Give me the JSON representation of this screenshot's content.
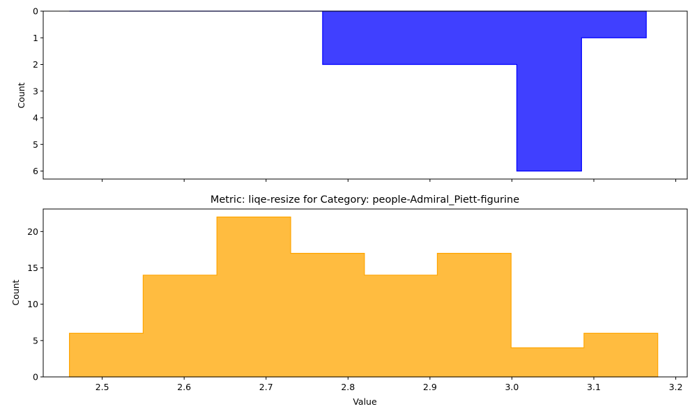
{
  "chart_data": [
    {
      "type": "histogram",
      "orientation": "up",
      "title": "",
      "xlabel": "",
      "ylabel": "Count",
      "xlim": [
        2.428,
        3.214
      ],
      "ylim": [
        0,
        6.3
      ],
      "yticks": [
        "0",
        "1",
        "2",
        "3",
        "4",
        "5",
        "6"
      ],
      "ytick_values": [
        0,
        1,
        2,
        3,
        4,
        5,
        6
      ],
      "xticks_values": [
        2.5,
        2.6,
        2.7,
        2.8,
        2.9,
        3.0,
        3.1,
        3.2
      ],
      "xticks_labels_shown": false,
      "color": "#0000ff",
      "fill_alpha": 0.75,
      "grid": false,
      "bin_edges": [
        2.46,
        2.539,
        2.618,
        2.69,
        2.769,
        2.848,
        2.927,
        3.006,
        3.085,
        3.164
      ],
      "counts": [
        0,
        0,
        0,
        0,
        2,
        2,
        2,
        6,
        1
      ]
    },
    {
      "type": "histogram",
      "orientation": "down",
      "title": "Metric: liqe-resize for Category: people-Admiral_Piett-figurine",
      "xlabel": "Value",
      "ylabel": "Count",
      "xlim": [
        2.428,
        3.214
      ],
      "ylim": [
        23.1,
        0
      ],
      "yticks": [
        "0",
        "5",
        "10",
        "15",
        "20"
      ],
      "ytick_values": [
        0,
        5,
        10,
        15,
        20
      ],
      "xticks": [
        "2.5",
        "2.6",
        "2.7",
        "2.8",
        "2.9",
        "3.0",
        "3.1",
        "3.2"
      ],
      "xticks_values": [
        2.5,
        2.6,
        2.7,
        2.8,
        2.9,
        3.0,
        3.1,
        3.2
      ],
      "color": "#ffa500",
      "fill_alpha": 0.75,
      "grid": false,
      "bin_edges": [
        2.46,
        2.55,
        2.64,
        2.73,
        2.82,
        2.909,
        2.999,
        3.088,
        3.178
      ],
      "counts": [
        6,
        14,
        22,
        17,
        14,
        17,
        4,
        6
      ]
    }
  ]
}
